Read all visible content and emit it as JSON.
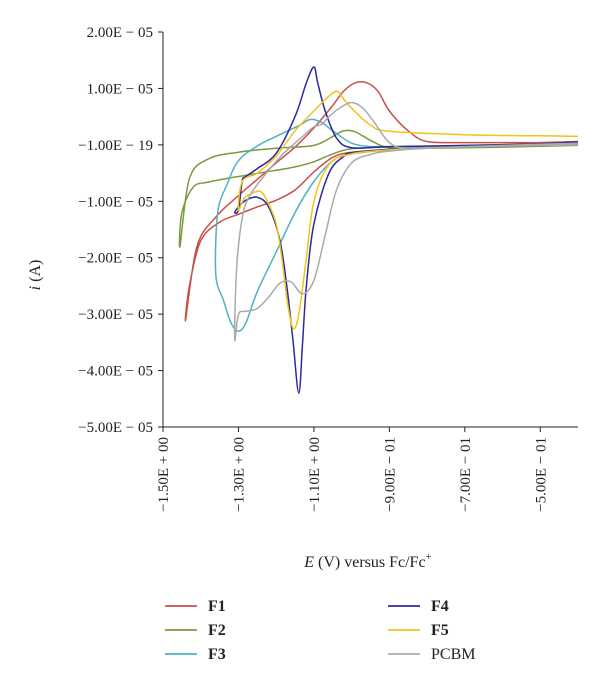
{
  "chart_data": {
    "type": "line",
    "xlabel": {
      "var": "E",
      "unit": "(V) versus Fc/Fc",
      "sup": "+"
    },
    "ylabel": {
      "var": "i",
      "unit": "(A)"
    },
    "xlim": [
      -1.5,
      -0.4
    ],
    "ylim": [
      -5e-05,
      2e-05
    ],
    "x_ticks": [
      -1.5,
      -1.3,
      -1.1,
      -0.9,
      -0.7,
      -0.5
    ],
    "x_tick_labels": [
      "−1.50E + 00",
      "−1.30E + 00",
      "−1.10E + 00",
      "−9.00E − 01",
      "−7.00E − 01",
      "−5.00E − 01"
    ],
    "y_ticks": [
      2e-05,
      1e-05,
      0,
      -1e-05,
      -2e-05,
      -3e-05,
      -4e-05,
      -5e-05
    ],
    "y_tick_labels": [
      "2.00E − 05",
      "1.00E − 05",
      "−1.00E − 19",
      "−1.00E − 05",
      "−2.00E − 05",
      "−3.00E − 05",
      "−4.00E − 05",
      "−5.00E − 05"
    ],
    "grid": false,
    "legend_position": "bottom",
    "series": [
      {
        "name": "F1",
        "color": "#c8504a",
        "points": [
          [
            -0.4,
            6e-07
          ],
          [
            -0.5,
            4e-07
          ],
          [
            -0.6,
            4e-07
          ],
          [
            -0.7,
            4e-07
          ],
          [
            -0.8,
            6e-07
          ],
          [
            -0.85,
            2.5e-06
          ],
          [
            -0.9,
            6e-06
          ],
          [
            -0.93,
            9.5e-06
          ],
          [
            -0.96,
            1.1e-05
          ],
          [
            -0.99,
            1.1e-05
          ],
          [
            -1.02,
            9.6e-06
          ],
          [
            -1.05,
            7e-06
          ],
          [
            -1.1,
            3e-06
          ],
          [
            -1.15,
            -4e-07
          ],
          [
            -1.2,
            -3.2e-06
          ],
          [
            -1.25,
            -6.1e-06
          ],
          [
            -1.3,
            -9e-06
          ],
          [
            -1.36,
            -1.28e-05
          ],
          [
            -1.41,
            -1.8e-05
          ],
          [
            -1.44,
            -3.1e-05
          ],
          [
            -1.43,
            -2.5e-05
          ],
          [
            -1.4,
            -1.7e-05
          ],
          [
            -1.35,
            -1.37e-05
          ],
          [
            -1.3,
            -1.23e-05
          ],
          [
            -1.25,
            -1.1e-05
          ],
          [
            -1.2,
            -9.8e-06
          ],
          [
            -1.15,
            -8e-06
          ],
          [
            -1.1,
            -4.8e-06
          ],
          [
            -1.05,
            -2.2e-06
          ],
          [
            -1.0,
            -1.3e-06
          ],
          [
            -0.9,
            -8e-07
          ],
          [
            -0.8,
            -5e-07
          ],
          [
            -0.6,
            -2e-07
          ],
          [
            -0.4,
            0
          ]
        ]
      },
      {
        "name": "F2",
        "color": "#7a9a3e",
        "points": [
          [
            -0.4,
            -1e-07
          ],
          [
            -0.6,
            -4e-07
          ],
          [
            -0.8,
            -6e-07
          ],
          [
            -0.9,
            -5e-07
          ],
          [
            -0.95,
            8e-07
          ],
          [
            -0.99,
            2.3e-06
          ],
          [
            -1.02,
            2.5e-06
          ],
          [
            -1.05,
            1.5e-06
          ],
          [
            -1.1,
            -1e-07
          ],
          [
            -1.2,
            -6e-07
          ],
          [
            -1.3,
            -1.3e-06
          ],
          [
            -1.38,
            -2.5e-06
          ],
          [
            -1.43,
            -6e-06
          ],
          [
            -1.455,
            -1.8e-05
          ],
          [
            -1.45,
            -1.2e-05
          ],
          [
            -1.42,
            -7.5e-06
          ],
          [
            -1.38,
            -6.6e-06
          ],
          [
            -1.3,
            -5.6e-06
          ],
          [
            -1.2,
            -4.5e-06
          ],
          [
            -1.15,
            -3.9e-06
          ],
          [
            -1.1,
            -3e-06
          ],
          [
            -1.05,
            -1.6e-06
          ],
          [
            -1.0,
            -7e-07
          ],
          [
            -0.9,
            -4e-07
          ],
          [
            -0.7,
            -3e-07
          ],
          [
            -0.5,
            0
          ],
          [
            -0.4,
            1e-07
          ]
        ]
      },
      {
        "name": "F3",
        "color": "#4fb1c4",
        "points": [
          [
            -0.4,
            1e-07
          ],
          [
            -0.6,
            -2e-07
          ],
          [
            -0.8,
            -3e-07
          ],
          [
            -0.9,
            -3e-07
          ],
          [
            -0.95,
            -3e-07
          ],
          [
            -1.0,
            3e-07
          ],
          [
            -1.05,
            2.5e-06
          ],
          [
            -1.08,
            4e-06
          ],
          [
            -1.11,
            4.5e-06
          ],
          [
            -1.14,
            3.4e-06
          ],
          [
            -1.2,
            1.5e-06
          ],
          [
            -1.25,
            -2e-07
          ],
          [
            -1.3,
            -2.8e-06
          ],
          [
            -1.33,
            -7e-06
          ],
          [
            -1.355,
            -1.2e-05
          ],
          [
            -1.36,
            -2.3e-05
          ],
          [
            -1.34,
            -2.75e-05
          ],
          [
            -1.32,
            -3.15e-05
          ],
          [
            -1.3,
            -3.3e-05
          ],
          [
            -1.28,
            -3.15e-05
          ],
          [
            -1.25,
            -2.6e-05
          ],
          [
            -1.2,
            -1.9e-05
          ],
          [
            -1.15,
            -1.2e-05
          ],
          [
            -1.1,
            -6.5e-06
          ],
          [
            -1.05,
            -2.8e-06
          ],
          [
            -1.0,
            -1.6e-06
          ],
          [
            -0.9,
            -9e-07
          ],
          [
            -0.8,
            -5e-07
          ],
          [
            -0.6,
            -2e-07
          ],
          [
            -0.4,
            0
          ]
        ]
      },
      {
        "name": "F4",
        "color": "#2a2a9e",
        "points": [
          [
            -0.4,
            5e-07
          ],
          [
            -0.5,
            2e-07
          ],
          [
            -0.7,
            -1e-07
          ],
          [
            -0.9,
            -3e-07
          ],
          [
            -1.0,
            -5e-07
          ],
          [
            -1.04,
            1.2e-06
          ],
          [
            -1.07,
            6e-06
          ],
          [
            -1.09,
            1.1e-05
          ],
          [
            -1.1,
            1.38e-05
          ],
          [
            -1.12,
            1.1e-05
          ],
          [
            -1.15,
            5e-06
          ],
          [
            -1.2,
            -1.5e-06
          ],
          [
            -1.25,
            -4.2e-06
          ],
          [
            -1.28,
            -5.6e-06
          ],
          [
            -1.29,
            -6.4e-06
          ],
          [
            -1.3,
            -1.15e-05
          ],
          [
            -1.31,
            -1.2e-05
          ],
          [
            -1.3,
            -1.1e-05
          ],
          [
            -1.28,
            -9.8e-06
          ],
          [
            -1.25,
            -9.3e-06
          ],
          [
            -1.22,
            -1.1e-05
          ],
          [
            -1.19,
            -1.7e-05
          ],
          [
            -1.17,
            -2.6e-05
          ],
          [
            -1.155,
            -3.5e-05
          ],
          [
            -1.14,
            -4.4e-05
          ],
          [
            -1.13,
            -3.5e-05
          ],
          [
            -1.12,
            -2.5e-05
          ],
          [
            -1.1,
            -1.4e-05
          ],
          [
            -1.06,
            -5e-06
          ],
          [
            -1.02,
            -2e-06
          ],
          [
            -1.0,
            -1.4e-06
          ],
          [
            -0.9,
            -8e-07
          ],
          [
            -0.8,
            -5e-07
          ],
          [
            -0.6,
            -2e-07
          ],
          [
            -0.4,
            0
          ]
        ]
      },
      {
        "name": "F5",
        "color": "#f0c419",
        "points": [
          [
            -0.4,
            1.5e-06
          ],
          [
            -0.5,
            1.6e-06
          ],
          [
            -0.7,
            1.8e-06
          ],
          [
            -0.9,
            2.4e-06
          ],
          [
            -0.95,
            3.5e-06
          ],
          [
            -1.0,
            6.5e-06
          ],
          [
            -1.02,
            8e-06
          ],
          [
            -1.04,
            9.5e-06
          ],
          [
            -1.07,
            8e-06
          ],
          [
            -1.1,
            6e-06
          ],
          [
            -1.15,
            2.5e-06
          ],
          [
            -1.2,
            -2e-06
          ],
          [
            -1.25,
            -5e-06
          ],
          [
            -1.29,
            -6.5e-06
          ],
          [
            -1.3,
            -1.15e-05
          ],
          [
            -1.285,
            -9.5e-06
          ],
          [
            -1.265,
            -8.6e-06
          ],
          [
            -1.24,
            -8.3e-06
          ],
          [
            -1.22,
            -1.05e-05
          ],
          [
            -1.2,
            -1.4e-05
          ],
          [
            -1.185,
            -2e-05
          ],
          [
            -1.17,
            -2.8e-05
          ],
          [
            -1.155,
            -3.25e-05
          ],
          [
            -1.14,
            -3e-05
          ],
          [
            -1.12,
            -2e-05
          ],
          [
            -1.1,
            -1e-05
          ],
          [
            -1.06,
            -3.5e-06
          ],
          [
            -1.0,
            -1.6e-06
          ],
          [
            -0.9,
            -9e-07
          ],
          [
            -0.8,
            -5e-07
          ],
          [
            -0.6,
            -2e-07
          ],
          [
            -0.4,
            0
          ]
        ]
      },
      {
        "name": "PCBM",
        "color": "#aaaaaa",
        "points": [
          [
            -0.4,
            3e-07
          ],
          [
            -0.5,
            1e-07
          ],
          [
            -0.7,
            -3e-07
          ],
          [
            -0.85,
            -6e-07
          ],
          [
            -0.9,
            4e-07
          ],
          [
            -0.94,
            4e-06
          ],
          [
            -0.97,
            6.5e-06
          ],
          [
            -1.0,
            7.5e-06
          ],
          [
            -1.03,
            6.6e-06
          ],
          [
            -1.06,
            5e-06
          ],
          [
            -1.08,
            3.6e-06
          ],
          [
            -1.1,
            3.2e-06
          ],
          [
            -1.13,
            1.5e-06
          ],
          [
            -1.18,
            -1.5e-06
          ],
          [
            -1.22,
            -4.5e-06
          ],
          [
            -1.27,
            -9e-06
          ],
          [
            -1.29,
            -1.3e-05
          ],
          [
            -1.305,
            -2.2e-05
          ],
          [
            -1.31,
            -3.45e-05
          ],
          [
            -1.3,
            -3e-05
          ],
          [
            -1.28,
            -2.95e-05
          ],
          [
            -1.25,
            -2.9e-05
          ],
          [
            -1.22,
            -2.7e-05
          ],
          [
            -1.19,
            -2.45e-05
          ],
          [
            -1.16,
            -2.43e-05
          ],
          [
            -1.13,
            -2.64e-05
          ],
          [
            -1.1,
            -2.4e-05
          ],
          [
            -1.07,
            -1.6e-05
          ],
          [
            -1.04,
            -8e-06
          ],
          [
            -1.0,
            -3.2e-06
          ],
          [
            -0.95,
            -1.7e-06
          ],
          [
            -0.9,
            -1.1e-06
          ],
          [
            -0.8,
            -6e-07
          ],
          [
            -0.6,
            -2e-07
          ],
          [
            -0.4,
            0
          ]
        ]
      }
    ]
  },
  "legend": [
    {
      "label": "F1",
      "color": "#c8504a",
      "bold": true
    },
    {
      "label": "F2",
      "color": "#7a9a3e",
      "bold": true
    },
    {
      "label": "F3",
      "color": "#4fb1c4",
      "bold": true
    },
    {
      "label": "F4",
      "color": "#2a2a9e",
      "bold": true
    },
    {
      "label": "F5",
      "color": "#f0c419",
      "bold": true
    },
    {
      "label": "PCBM",
      "color": "#aaaaaa",
      "bold": false
    }
  ]
}
